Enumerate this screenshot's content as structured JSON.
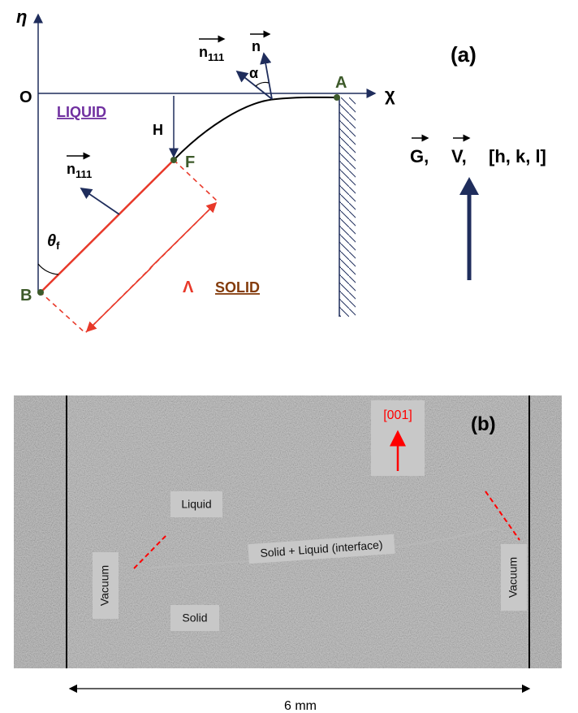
{
  "panel_a": {
    "label": "(a)",
    "axes": {
      "eta": "η",
      "chi": "χ",
      "origin": "O"
    },
    "points": {
      "A": "A",
      "B": "B",
      "F": "F"
    },
    "regions": {
      "liquid": "LIQUID",
      "solid": "SOLID"
    },
    "H": "H",
    "alpha": "α",
    "lambda": "Λ",
    "theta": {
      "text": "θ",
      "sub": "f"
    },
    "normals": [
      {
        "text": "n",
        "sub": "111"
      },
      {
        "text": "n"
      },
      {
        "text": "n",
        "sub": "111"
      }
    ],
    "directions": [
      "G,",
      "V,",
      "[h, k, l]"
    ]
  },
  "panel_b": {
    "label": "(b)",
    "direction": "[001]",
    "labels": {
      "liquid": "Liquid",
      "interface": "Solid + Liquid (interface)",
      "vacuum_left": "Vacuum",
      "vacuum_right": "Vacuum",
      "solid": "Solid"
    },
    "scale": "6 mm"
  }
}
